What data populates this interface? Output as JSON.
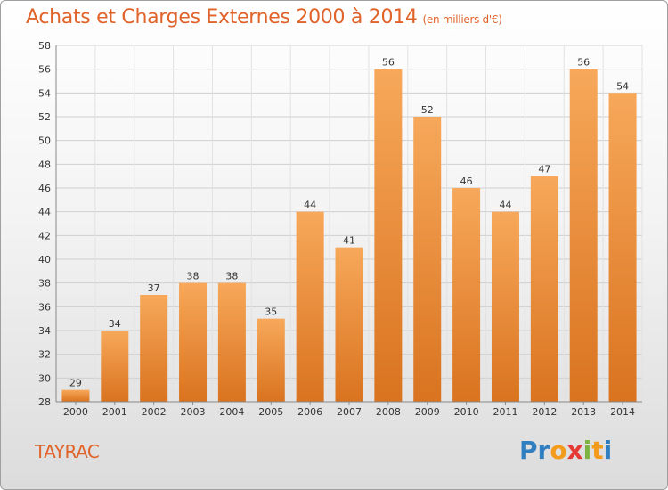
{
  "header": {
    "title": "Achats et Charges Externes 2000 à 2014",
    "subtitle": "(en milliers d'€)"
  },
  "footer": {
    "commune": "TAYRAC",
    "logo": {
      "p1": "Pr",
      "p2": "o",
      "p3": "x",
      "p4": "i",
      "p5": "t",
      "p6": "i"
    }
  },
  "colors": {
    "bar_top": "#f7a85a",
    "bar_bottom": "#d9731f",
    "accent": "#e0632a"
  },
  "chart_data": {
    "type": "bar",
    "title": "Achats et Charges Externes 2000 à 2014",
    "subtitle": "(en milliers d'€)",
    "xlabel": "",
    "ylabel": "",
    "categories": [
      "2000",
      "2001",
      "2002",
      "2003",
      "2004",
      "2005",
      "2006",
      "2007",
      "2008",
      "2009",
      "2010",
      "2011",
      "2012",
      "2013",
      "2014"
    ],
    "values": [
      29,
      34,
      37,
      38,
      38,
      35,
      44,
      41,
      56,
      52,
      46,
      44,
      47,
      56,
      54
    ],
    "ylim": [
      28,
      58
    ],
    "yticks": [
      28,
      30,
      32,
      34,
      36,
      38,
      40,
      42,
      44,
      46,
      48,
      50,
      52,
      54,
      56,
      58
    ],
    "grid": true,
    "data_labels": true
  }
}
